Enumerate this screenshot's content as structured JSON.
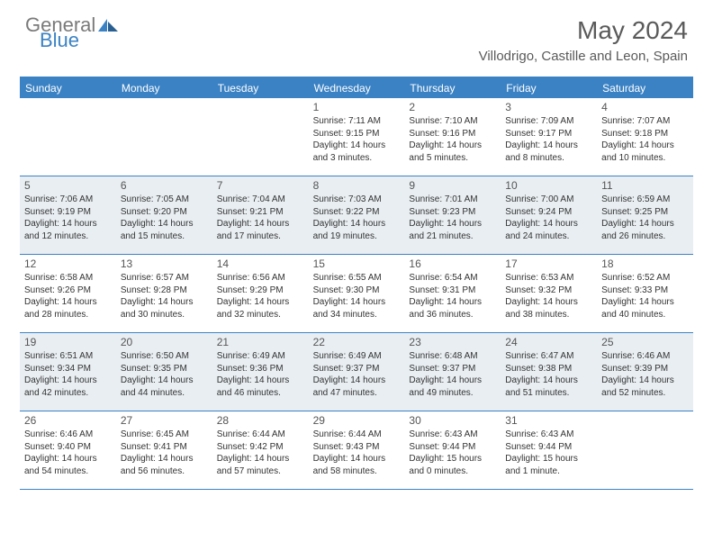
{
  "brand": {
    "part1": "General",
    "part2": "Blue"
  },
  "title": "May 2024",
  "location": "Villodrigo, Castille and Leon, Spain",
  "colors": {
    "accent": "#3b82c4",
    "header_text": "#5a5a5a",
    "shaded_bg": "#e9eef2",
    "white": "#ffffff"
  },
  "weekdays": [
    "Sunday",
    "Monday",
    "Tuesday",
    "Wednesday",
    "Thursday",
    "Friday",
    "Saturday"
  ],
  "weeks": [
    [
      {
        "n": "",
        "shaded": false,
        "sr": "",
        "ss": "",
        "dl": ""
      },
      {
        "n": "",
        "shaded": false,
        "sr": "",
        "ss": "",
        "dl": ""
      },
      {
        "n": "",
        "shaded": false,
        "sr": "",
        "ss": "",
        "dl": ""
      },
      {
        "n": "1",
        "shaded": false,
        "sr": "Sunrise: 7:11 AM",
        "ss": "Sunset: 9:15 PM",
        "dl": "Daylight: 14 hours and 3 minutes."
      },
      {
        "n": "2",
        "shaded": false,
        "sr": "Sunrise: 7:10 AM",
        "ss": "Sunset: 9:16 PM",
        "dl": "Daylight: 14 hours and 5 minutes."
      },
      {
        "n": "3",
        "shaded": false,
        "sr": "Sunrise: 7:09 AM",
        "ss": "Sunset: 9:17 PM",
        "dl": "Daylight: 14 hours and 8 minutes."
      },
      {
        "n": "4",
        "shaded": false,
        "sr": "Sunrise: 7:07 AM",
        "ss": "Sunset: 9:18 PM",
        "dl": "Daylight: 14 hours and 10 minutes."
      }
    ],
    [
      {
        "n": "5",
        "shaded": true,
        "sr": "Sunrise: 7:06 AM",
        "ss": "Sunset: 9:19 PM",
        "dl": "Daylight: 14 hours and 12 minutes."
      },
      {
        "n": "6",
        "shaded": true,
        "sr": "Sunrise: 7:05 AM",
        "ss": "Sunset: 9:20 PM",
        "dl": "Daylight: 14 hours and 15 minutes."
      },
      {
        "n": "7",
        "shaded": true,
        "sr": "Sunrise: 7:04 AM",
        "ss": "Sunset: 9:21 PM",
        "dl": "Daylight: 14 hours and 17 minutes."
      },
      {
        "n": "8",
        "shaded": true,
        "sr": "Sunrise: 7:03 AM",
        "ss": "Sunset: 9:22 PM",
        "dl": "Daylight: 14 hours and 19 minutes."
      },
      {
        "n": "9",
        "shaded": true,
        "sr": "Sunrise: 7:01 AM",
        "ss": "Sunset: 9:23 PM",
        "dl": "Daylight: 14 hours and 21 minutes."
      },
      {
        "n": "10",
        "shaded": true,
        "sr": "Sunrise: 7:00 AM",
        "ss": "Sunset: 9:24 PM",
        "dl": "Daylight: 14 hours and 24 minutes."
      },
      {
        "n": "11",
        "shaded": true,
        "sr": "Sunrise: 6:59 AM",
        "ss": "Sunset: 9:25 PM",
        "dl": "Daylight: 14 hours and 26 minutes."
      }
    ],
    [
      {
        "n": "12",
        "shaded": false,
        "sr": "Sunrise: 6:58 AM",
        "ss": "Sunset: 9:26 PM",
        "dl": "Daylight: 14 hours and 28 minutes."
      },
      {
        "n": "13",
        "shaded": false,
        "sr": "Sunrise: 6:57 AM",
        "ss": "Sunset: 9:28 PM",
        "dl": "Daylight: 14 hours and 30 minutes."
      },
      {
        "n": "14",
        "shaded": false,
        "sr": "Sunrise: 6:56 AM",
        "ss": "Sunset: 9:29 PM",
        "dl": "Daylight: 14 hours and 32 minutes."
      },
      {
        "n": "15",
        "shaded": false,
        "sr": "Sunrise: 6:55 AM",
        "ss": "Sunset: 9:30 PM",
        "dl": "Daylight: 14 hours and 34 minutes."
      },
      {
        "n": "16",
        "shaded": false,
        "sr": "Sunrise: 6:54 AM",
        "ss": "Sunset: 9:31 PM",
        "dl": "Daylight: 14 hours and 36 minutes."
      },
      {
        "n": "17",
        "shaded": false,
        "sr": "Sunrise: 6:53 AM",
        "ss": "Sunset: 9:32 PM",
        "dl": "Daylight: 14 hours and 38 minutes."
      },
      {
        "n": "18",
        "shaded": false,
        "sr": "Sunrise: 6:52 AM",
        "ss": "Sunset: 9:33 PM",
        "dl": "Daylight: 14 hours and 40 minutes."
      }
    ],
    [
      {
        "n": "19",
        "shaded": true,
        "sr": "Sunrise: 6:51 AM",
        "ss": "Sunset: 9:34 PM",
        "dl": "Daylight: 14 hours and 42 minutes."
      },
      {
        "n": "20",
        "shaded": true,
        "sr": "Sunrise: 6:50 AM",
        "ss": "Sunset: 9:35 PM",
        "dl": "Daylight: 14 hours and 44 minutes."
      },
      {
        "n": "21",
        "shaded": true,
        "sr": "Sunrise: 6:49 AM",
        "ss": "Sunset: 9:36 PM",
        "dl": "Daylight: 14 hours and 46 minutes."
      },
      {
        "n": "22",
        "shaded": true,
        "sr": "Sunrise: 6:49 AM",
        "ss": "Sunset: 9:37 PM",
        "dl": "Daylight: 14 hours and 47 minutes."
      },
      {
        "n": "23",
        "shaded": true,
        "sr": "Sunrise: 6:48 AM",
        "ss": "Sunset: 9:37 PM",
        "dl": "Daylight: 14 hours and 49 minutes."
      },
      {
        "n": "24",
        "shaded": true,
        "sr": "Sunrise: 6:47 AM",
        "ss": "Sunset: 9:38 PM",
        "dl": "Daylight: 14 hours and 51 minutes."
      },
      {
        "n": "25",
        "shaded": true,
        "sr": "Sunrise: 6:46 AM",
        "ss": "Sunset: 9:39 PM",
        "dl": "Daylight: 14 hours and 52 minutes."
      }
    ],
    [
      {
        "n": "26",
        "shaded": false,
        "sr": "Sunrise: 6:46 AM",
        "ss": "Sunset: 9:40 PM",
        "dl": "Daylight: 14 hours and 54 minutes."
      },
      {
        "n": "27",
        "shaded": false,
        "sr": "Sunrise: 6:45 AM",
        "ss": "Sunset: 9:41 PM",
        "dl": "Daylight: 14 hours and 56 minutes."
      },
      {
        "n": "28",
        "shaded": false,
        "sr": "Sunrise: 6:44 AM",
        "ss": "Sunset: 9:42 PM",
        "dl": "Daylight: 14 hours and 57 minutes."
      },
      {
        "n": "29",
        "shaded": false,
        "sr": "Sunrise: 6:44 AM",
        "ss": "Sunset: 9:43 PM",
        "dl": "Daylight: 14 hours and 58 minutes."
      },
      {
        "n": "30",
        "shaded": false,
        "sr": "Sunrise: 6:43 AM",
        "ss": "Sunset: 9:44 PM",
        "dl": "Daylight: 15 hours and 0 minutes."
      },
      {
        "n": "31",
        "shaded": false,
        "sr": "Sunrise: 6:43 AM",
        "ss": "Sunset: 9:44 PM",
        "dl": "Daylight: 15 hours and 1 minute."
      },
      {
        "n": "",
        "shaded": false,
        "sr": "",
        "ss": "",
        "dl": ""
      }
    ]
  ]
}
